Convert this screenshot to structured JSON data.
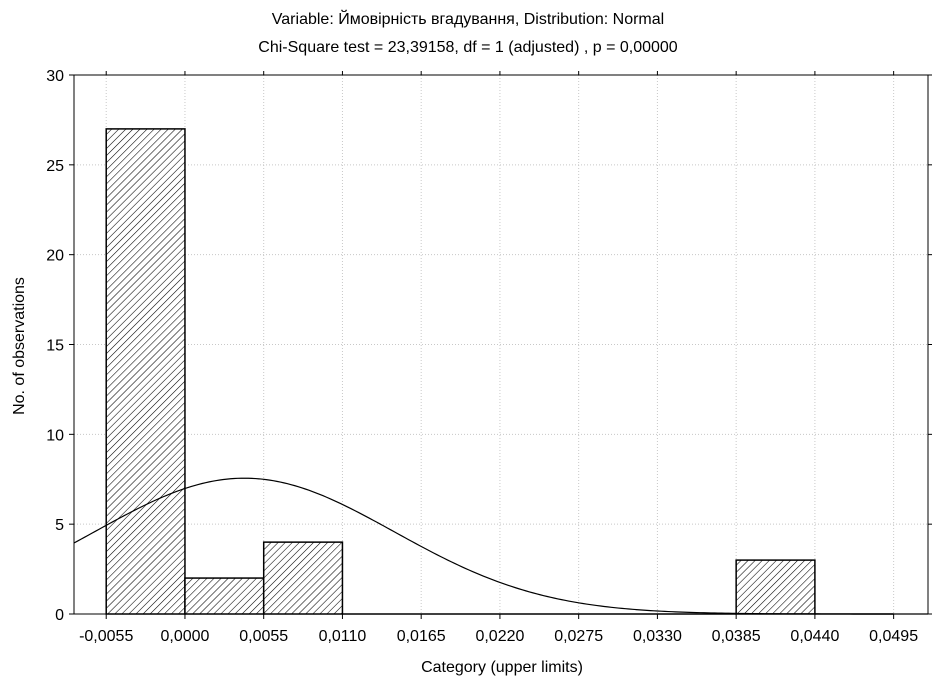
{
  "chart_data": {
    "type": "bar",
    "title": "Variable: Ймовірність вгадування, Distribution: Normal",
    "subtitle": "Chi-Square test = 23,39158, df = 1 (adjusted) , p = 0,00000",
    "xlabel": "Category (upper limits)",
    "ylabel": "No. of observations",
    "x_tick_labels": [
      "-0,0055",
      "0,0000",
      "0,0055",
      "0,0110",
      "0,0165",
      "0,0220",
      "0,0275",
      "0,0330",
      "0,0385",
      "0,0440",
      "0,0495"
    ],
    "x_ticks": [
      -0.0055,
      0,
      0.0055,
      0.011,
      0.0165,
      0.022,
      0.0275,
      0.033,
      0.0385,
      0.044,
      0.0495
    ],
    "y_ticks": [
      0,
      5,
      10,
      15,
      20,
      25,
      30
    ],
    "y_tick_labels": [
      "0",
      "5",
      "10",
      "15",
      "20",
      "25",
      "30"
    ],
    "xlim": [
      -0.00775,
      0.0519
    ],
    "ylim": [
      0,
      30
    ],
    "grid": true,
    "bars": [
      {
        "x0": -0.0055,
        "x1": 0.0,
        "value": 27
      },
      {
        "x0": 0.0,
        "x1": 0.0055,
        "value": 2
      },
      {
        "x0": 0.0055,
        "x1": 0.011,
        "value": 4
      },
      {
        "x0": 0.011,
        "x1": 0.0165,
        "value": 0
      },
      {
        "x0": 0.0165,
        "x1": 0.022,
        "value": 0
      },
      {
        "x0": 0.022,
        "x1": 0.0275,
        "value": 0
      },
      {
        "x0": 0.0275,
        "x1": 0.033,
        "value": 0
      },
      {
        "x0": 0.033,
        "x1": 0.0385,
        "value": 0
      },
      {
        "x0": 0.0385,
        "x1": 0.044,
        "value": 3
      },
      {
        "x0": 0.044,
        "x1": 0.0495,
        "value": 0
      }
    ],
    "normal_curve": {
      "mean": 0.00415,
      "sd": 0.01045,
      "total": 36,
      "bin_width": 0.0055
    },
    "bar_fill": "hatched",
    "bar_stroke": "#000000",
    "curve_color": "#000000"
  }
}
